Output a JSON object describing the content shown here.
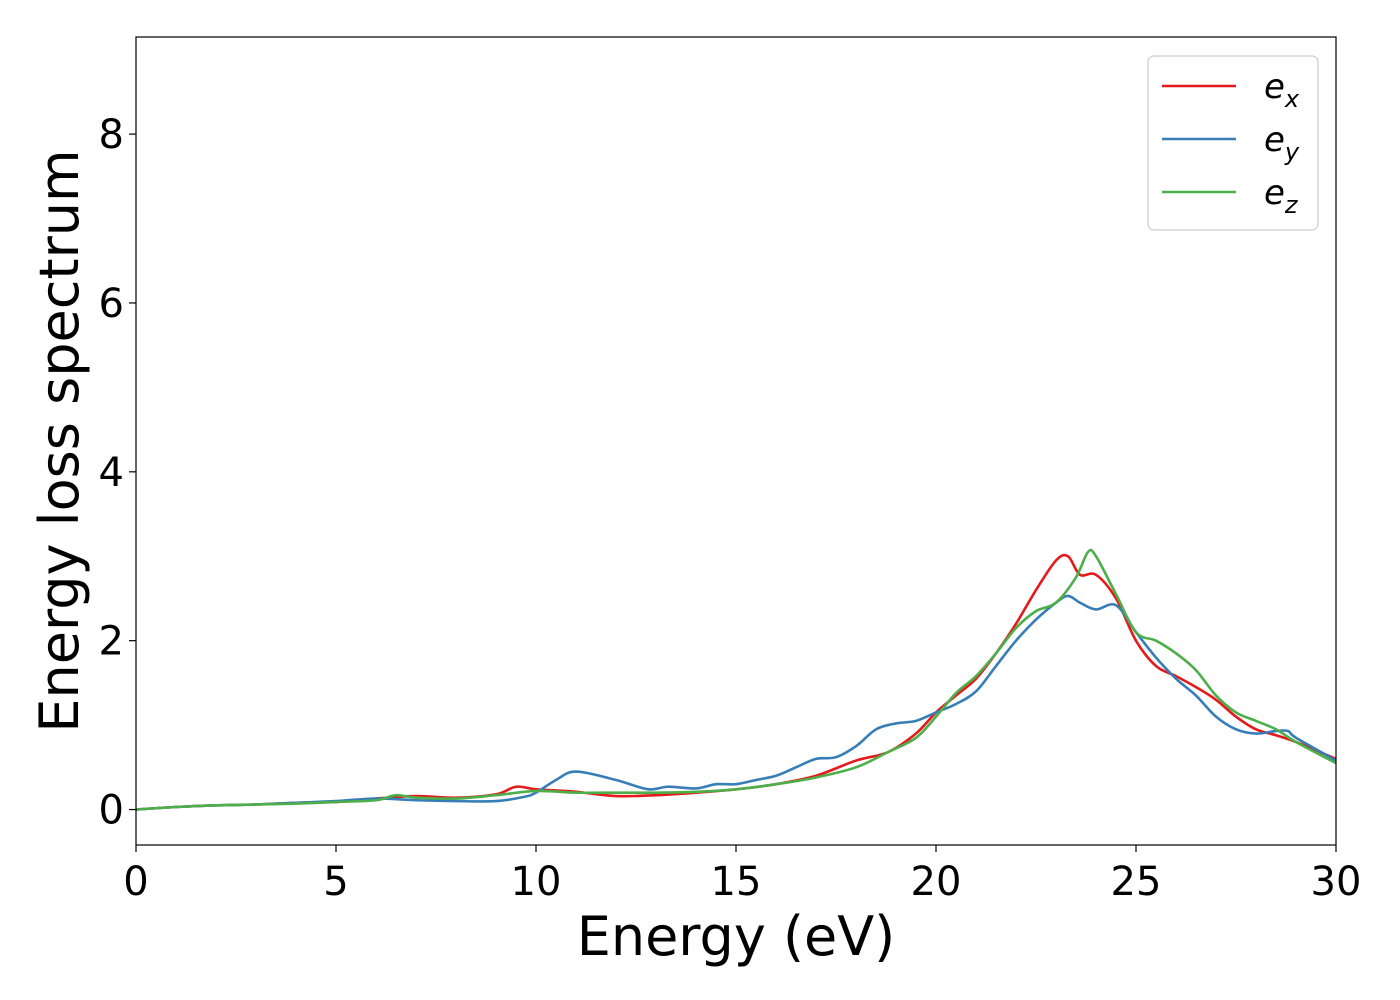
{
  "chart_data": {
    "type": "line",
    "title": "",
    "xlabel": "Energy (eV)",
    "ylabel": "Energy loss spectrum",
    "xlim": [
      0,
      30
    ],
    "ylim": [
      -0.42,
      9.15
    ],
    "x_ticks": [
      0,
      5,
      10,
      15,
      20,
      25,
      30
    ],
    "y_ticks": [
      0,
      2,
      4,
      6,
      8
    ],
    "grid": false,
    "legend_position": "top-right",
    "series": [
      {
        "name": "e_x",
        "legend_base": "e",
        "legend_sub": "x",
        "color": "#e41a1c",
        "points": [
          [
            0,
            0
          ],
          [
            1,
            0.03
          ],
          [
            2,
            0.05
          ],
          [
            3,
            0.06
          ],
          [
            4,
            0.08
          ],
          [
            5,
            0.09
          ],
          [
            6,
            0.13
          ],
          [
            7,
            0.16
          ],
          [
            8,
            0.14
          ],
          [
            9,
            0.18
          ],
          [
            9.5,
            0.27
          ],
          [
            10,
            0.24
          ],
          [
            11,
            0.21
          ],
          [
            12,
            0.16
          ],
          [
            13,
            0.17
          ],
          [
            14,
            0.2
          ],
          [
            15,
            0.24
          ],
          [
            16,
            0.3
          ],
          [
            17,
            0.4
          ],
          [
            18,
            0.58
          ],
          [
            18.8,
            0.68
          ],
          [
            19.5,
            0.9
          ],
          [
            20,
            1.15
          ],
          [
            20.5,
            1.35
          ],
          [
            21,
            1.55
          ],
          [
            21.5,
            1.85
          ],
          [
            22,
            2.2
          ],
          [
            22.5,
            2.6
          ],
          [
            23,
            2.95
          ],
          [
            23.3,
            3.0
          ],
          [
            23.6,
            2.78
          ],
          [
            24,
            2.78
          ],
          [
            24.5,
            2.5
          ],
          [
            25,
            2.0
          ],
          [
            25.5,
            1.7
          ],
          [
            26,
            1.58
          ],
          [
            26.5,
            1.45
          ],
          [
            27,
            1.3
          ],
          [
            27.5,
            1.1
          ],
          [
            28,
            0.95
          ],
          [
            28.5,
            0.88
          ],
          [
            29,
            0.8
          ],
          [
            30,
            0.6
          ]
        ]
      },
      {
        "name": "e_y",
        "legend_base": "e",
        "legend_sub": "y",
        "color": "#377eb8",
        "points": [
          [
            0,
            0
          ],
          [
            1,
            0.03
          ],
          [
            2,
            0.05
          ],
          [
            3,
            0.06
          ],
          [
            4,
            0.08
          ],
          [
            5,
            0.1
          ],
          [
            6,
            0.13
          ],
          [
            7,
            0.11
          ],
          [
            8,
            0.1
          ],
          [
            9,
            0.1
          ],
          [
            9.7,
            0.15
          ],
          [
            10,
            0.2
          ],
          [
            10.5,
            0.35
          ],
          [
            11,
            0.45
          ],
          [
            12,
            0.35
          ],
          [
            12.8,
            0.24
          ],
          [
            13.3,
            0.27
          ],
          [
            14,
            0.25
          ],
          [
            14.5,
            0.3
          ],
          [
            15,
            0.3
          ],
          [
            15.5,
            0.35
          ],
          [
            16,
            0.4
          ],
          [
            16.5,
            0.5
          ],
          [
            17,
            0.6
          ],
          [
            17.5,
            0.62
          ],
          [
            18,
            0.75
          ],
          [
            18.5,
            0.95
          ],
          [
            19,
            1.02
          ],
          [
            19.5,
            1.05
          ],
          [
            20,
            1.15
          ],
          [
            20.5,
            1.25
          ],
          [
            21,
            1.4
          ],
          [
            21.5,
            1.7
          ],
          [
            22,
            2.0
          ],
          [
            22.5,
            2.25
          ],
          [
            23,
            2.45
          ],
          [
            23.3,
            2.53
          ],
          [
            23.6,
            2.45
          ],
          [
            24,
            2.37
          ],
          [
            24.5,
            2.42
          ],
          [
            25,
            2.1
          ],
          [
            25.5,
            1.8
          ],
          [
            26,
            1.55
          ],
          [
            26.5,
            1.35
          ],
          [
            27,
            1.1
          ],
          [
            27.5,
            0.95
          ],
          [
            28,
            0.9
          ],
          [
            28.5,
            0.93
          ],
          [
            28.8,
            0.93
          ],
          [
            29,
            0.85
          ],
          [
            30,
            0.58
          ]
        ]
      },
      {
        "name": "e_z",
        "legend_base": "e",
        "legend_sub": "z",
        "color": "#4daf4a",
        "points": [
          [
            0,
            0
          ],
          [
            1,
            0.03
          ],
          [
            2,
            0.05
          ],
          [
            3,
            0.06
          ],
          [
            4,
            0.07
          ],
          [
            5,
            0.09
          ],
          [
            6,
            0.11
          ],
          [
            6.5,
            0.17
          ],
          [
            7,
            0.14
          ],
          [
            8,
            0.13
          ],
          [
            9,
            0.17
          ],
          [
            10,
            0.22
          ],
          [
            11,
            0.2
          ],
          [
            12,
            0.2
          ],
          [
            13,
            0.2
          ],
          [
            14,
            0.21
          ],
          [
            15,
            0.24
          ],
          [
            16,
            0.3
          ],
          [
            17,
            0.38
          ],
          [
            18,
            0.5
          ],
          [
            18.8,
            0.68
          ],
          [
            19.5,
            0.85
          ],
          [
            20,
            1.1
          ],
          [
            20.5,
            1.38
          ],
          [
            21,
            1.58
          ],
          [
            21.5,
            1.85
          ],
          [
            22,
            2.15
          ],
          [
            22.5,
            2.35
          ],
          [
            23,
            2.45
          ],
          [
            23.5,
            2.75
          ],
          [
            23.8,
            3.05
          ],
          [
            24,
            3.0
          ],
          [
            24.5,
            2.55
          ],
          [
            25,
            2.1
          ],
          [
            25.5,
            2.0
          ],
          [
            26,
            1.85
          ],
          [
            26.5,
            1.65
          ],
          [
            27,
            1.35
          ],
          [
            27.5,
            1.15
          ],
          [
            28,
            1.05
          ],
          [
            28.5,
            0.95
          ],
          [
            29,
            0.8
          ],
          [
            30,
            0.55
          ]
        ]
      }
    ]
  }
}
